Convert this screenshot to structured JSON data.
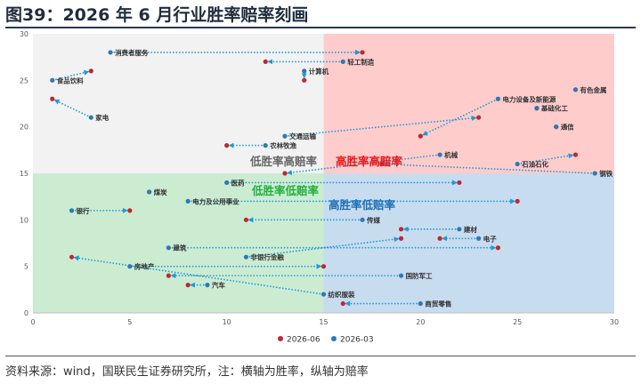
{
  "title": "图39：2026 年 6 月行业胜率赔率刻画",
  "source": "资料来源：wind，国联民生证券研究所，注：横轴为胜率，纵轴为赔率",
  "colors": {
    "q_low_high": "#f2f2f2",
    "q_high_high": "#ffcccc",
    "q_low_low": "#ccecd2",
    "q_high_low": "#c8dcf0",
    "series_2026_06": "#c0282d",
    "series_2026_03": "#2f78b5",
    "arrow": "#1e9ad6",
    "label_high_high": "#e8161b",
    "label_low_high": "#666666",
    "label_low_low": "#22b03c",
    "label_high_low": "#1f6fb5"
  },
  "chart_data": {
    "type": "scatter",
    "xlim": [
      0,
      30
    ],
    "ylim": [
      0,
      30
    ],
    "xticks": [
      0,
      5,
      10,
      15,
      20,
      25,
      30
    ],
    "yticks": [
      0,
      5,
      10,
      15,
      20,
      25,
      30
    ],
    "divider": {
      "x": 15,
      "y": 15
    },
    "grid": false,
    "legend_position": "bottom",
    "series": [
      {
        "name": "2026-06"
      },
      {
        "name": "2026-03"
      }
    ],
    "quadrant_labels": {
      "high_high": "高胜率高赔率",
      "low_high": "低胜率高赔率",
      "low_low": "低胜率低赔率",
      "high_low": "高胜率低赔率"
    },
    "points": [
      {
        "name": "消费者服务",
        "x2603": 4,
        "y2603": 28,
        "x2606": 17,
        "y2606": 28
      },
      {
        "name": "食品饮料",
        "x2603": 1,
        "y2603": 25,
        "x2606": 3,
        "y2606": 26
      },
      {
        "name": "轻工制造",
        "x2603": 16,
        "y2603": 27,
        "x2606": 12,
        "y2606": 27
      },
      {
        "name": "计算机",
        "x2603": 14,
        "y2603": 26,
        "x2606": 14,
        "y2606": 25
      },
      {
        "name": "家电",
        "x2603": 3,
        "y2603": 21,
        "x2606": 1,
        "y2606": 23
      },
      {
        "name": "有色金属",
        "x2603": 28,
        "y2603": 24,
        "x2606": 28,
        "y2606": 24
      },
      {
        "name": "电力设备及新能源",
        "x2603": 24,
        "y2603": 23,
        "x2606": 20,
        "y2606": 19
      },
      {
        "name": "基础化工",
        "x2603": 26,
        "y2603": 22,
        "x2606": 26,
        "y2606": 22
      },
      {
        "name": "通信",
        "x2603": 27,
        "y2603": 20,
        "x2606": 27,
        "y2606": 20
      },
      {
        "name": "交通运输",
        "x2603": 13,
        "y2603": 19,
        "x2606": 23,
        "y2606": 21
      },
      {
        "name": "农林牧渔",
        "x2603": 12,
        "y2603": 18,
        "x2606": 10,
        "y2606": 18
      },
      {
        "name": "机械",
        "x2603": 21,
        "y2603": 17,
        "x2606": 13,
        "y2606": 15
      },
      {
        "name": "石油石化",
        "x2603": 25,
        "y2603": 16,
        "x2606": 28,
        "y2606": 17
      },
      {
        "name": "钢铁",
        "x2603": 29,
        "y2603": 15,
        "x2606": 18,
        "y2606": 16
      },
      {
        "name": "医药",
        "x2603": 10,
        "y2603": 14,
        "x2606": 22,
        "y2606": 14
      },
      {
        "name": "煤炭",
        "x2603": 6,
        "y2603": 13,
        "x2606": 6,
        "y2606": 13
      },
      {
        "name": "电力及公用事业",
        "x2603": 8,
        "y2603": 12,
        "x2606": 25,
        "y2606": 12
      },
      {
        "name": "银行",
        "x2603": 2,
        "y2603": 11,
        "x2606": 5,
        "y2606": 11
      },
      {
        "name": "传媒",
        "x2603": 17,
        "y2603": 10,
        "x2606": 11,
        "y2606": 10
      },
      {
        "name": "建材",
        "x2603": 22,
        "y2603": 9,
        "x2606": 19,
        "y2606": 9
      },
      {
        "name": "电子",
        "x2603": 23,
        "y2603": 8,
        "x2606": 21,
        "y2606": 8
      },
      {
        "name": "建筑",
        "x2603": 7,
        "y2603": 7,
        "x2606": 24,
        "y2606": 7
      },
      {
        "name": "非银行金融",
        "x2603": 11,
        "y2603": 6,
        "x2606": 19,
        "y2606": 8
      },
      {
        "name": "房地产",
        "x2603": 5,
        "y2603": 5,
        "x2606": 15,
        "y2606": 5
      },
      {
        "name": "国防军工",
        "x2603": 19,
        "y2603": 4,
        "x2606": 7,
        "y2606": 4
      },
      {
        "name": "汽车",
        "x2603": 9,
        "y2603": 3,
        "x2606": 8,
        "y2606": 3
      },
      {
        "name": "纺织服装",
        "x2603": 15,
        "y2603": 2,
        "x2606": 2,
        "y2606": 6
      },
      {
        "name": "商贸零售",
        "x2603": 20,
        "y2603": 1,
        "x2606": 16,
        "y2606": 1
      }
    ]
  }
}
